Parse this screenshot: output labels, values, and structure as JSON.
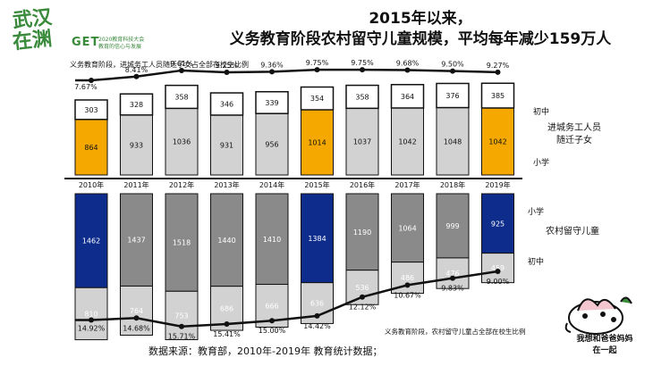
{
  "logo": {
    "line1": "武汉",
    "line2": "在渊",
    "get": "GET",
    "conf_line1": "2020教育科技大会",
    "conf_line2": "教育的信心与发展"
  },
  "title": {
    "line1": "2015年以来，",
    "line2": "义务教育阶段农村留守儿童规模，平均每年减少159万人"
  },
  "top_series_label": "义务教育阶段，进城务工人员随迁子女占全部在校生比例",
  "bottom_series_label": "义务教育阶段，农村留守儿童占全部在校生比例",
  "legend": {
    "top_upper": "初中",
    "top_group_line1": "进城务工人员",
    "top_group_line2": "随迁子女",
    "top_lower": "小学",
    "bottom_upper": "小学",
    "bottom_group": "农村留守儿童",
    "bottom_lower": "初中"
  },
  "credit": "数据来源：教育部，2010年-2019年 教育统计数据；",
  "cartoon_text_line1": "我想和爸爸妈妈",
  "cartoon_text_line2": "在一起",
  "colors": {
    "highlight_top": "#f5a800",
    "highlight_bottom": "#0d2c8c",
    "primary_top": "#d2d2d2",
    "primary_bottom": "#8a8a8a",
    "secondary": "#d2d2d2",
    "junior_top": "#ffffff"
  },
  "chart_data": {
    "type": "bar",
    "title": "2015年以来，义务教育阶段农村留守儿童规模，平均每年减少159万人",
    "unit": "万人",
    "categories": [
      "2010年",
      "2011年",
      "2012年",
      "2013年",
      "2014年",
      "2015年",
      "2016年",
      "2017年",
      "2018年",
      "2019年"
    ],
    "highlight_years": [
      "2010年",
      "2015年",
      "2019年"
    ],
    "migrant_children": {
      "primary": [
        864,
        933,
        1036,
        931,
        956,
        1014,
        1037,
        1042,
        1048,
        1042
      ],
      "junior": [
        303,
        328,
        358,
        346,
        339,
        354,
        358,
        364,
        376,
        385
      ],
      "share_pct": [
        "7.67%",
        "8.41%",
        "9.61%",
        "9.25%",
        "9.36%",
        "9.75%",
        "9.75%",
        "9.68%",
        "9.50%",
        "9.27%"
      ]
    },
    "left_behind_children": {
      "primary": [
        1462,
        1437,
        1518,
        1440,
        1410,
        1384,
        1190,
        1064,
        999,
        925
      ],
      "junior": [
        810,
        764,
        753,
        686,
        666,
        636,
        536,
        486,
        476,
        459
      ],
      "share_pct": [
        "14.92%",
        "14.68%",
        "15.71%",
        "15.41%",
        "15.00%",
        "14.42%",
        "12.12%",
        "10.67%",
        "9.83%",
        "9.00%"
      ]
    }
  }
}
